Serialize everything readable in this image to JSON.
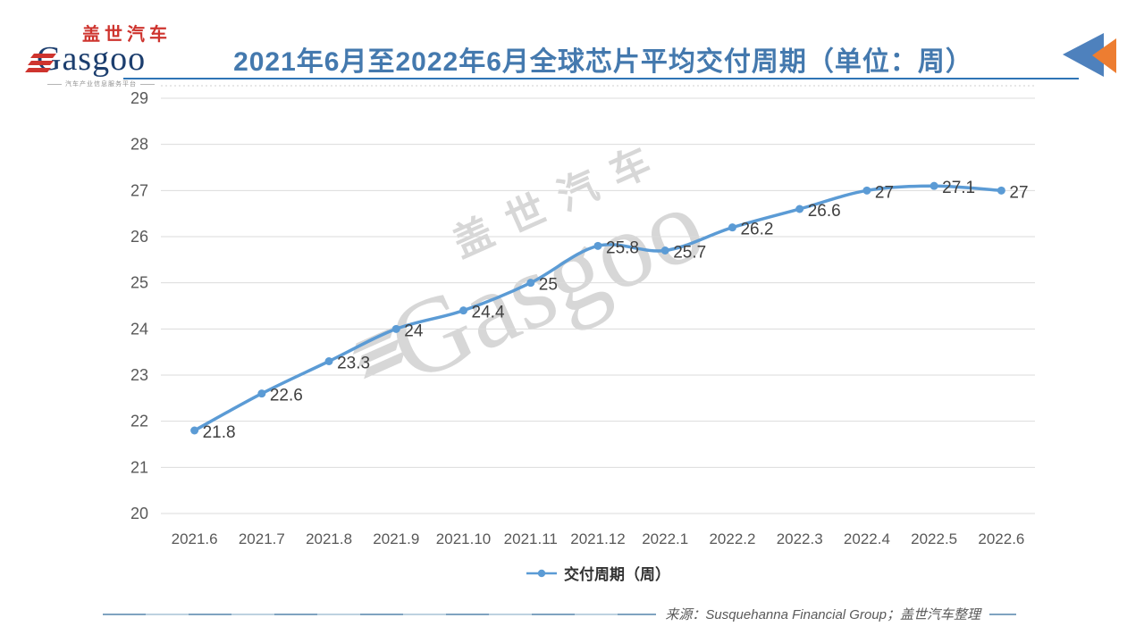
{
  "logo": {
    "cn": "盖世汽车",
    "en": "Gasgoo",
    "tagline": "汽车产业信息服务平台"
  },
  "header": {
    "title": "2021年6月至2022年6月全球芯片平均交付周期（单位：周）"
  },
  "chart_data": {
    "type": "line",
    "title": "2021年6月至2022年6月全球芯片平均交付周期（单位：周）",
    "categories": [
      "2021.6",
      "2021.7",
      "2021.8",
      "2021.9",
      "2021.10",
      "2021.11",
      "2021.12",
      "2022.1",
      "2022.2",
      "2022.3",
      "2022.4",
      "2022.5",
      "2022.6"
    ],
    "series": [
      {
        "name": "交付周期（周）",
        "values": [
          21.8,
          22.6,
          23.3,
          24,
          24.4,
          25,
          25.8,
          25.7,
          26.2,
          26.6,
          27,
          27.1,
          27
        ]
      }
    ],
    "xlabel": "",
    "ylabel": "",
    "ylim": [
      20,
      29
    ],
    "ytick_step": 1,
    "grid": "horizontal",
    "legend_position": "bottom",
    "smooth_line": true,
    "data_labels": true
  },
  "legend": {
    "label": "交付周期（周）"
  },
  "footer": {
    "source": "来源：Susquehanna Financial Group；盖世汽车整理"
  },
  "watermark": {
    "cn": "盖世汽车",
    "en": "Gasgoo"
  },
  "colors": {
    "title_blue": "#4479AE",
    "line_blue": "#5B9BD5",
    "logo_red": "#CE342E",
    "logo_navy": "#1C3E6E",
    "icon_orange": "#ED7D31",
    "icon_blue": "#4E81BD",
    "grid_gray": "#DBDBDB",
    "text_gray": "#595959",
    "label_dark": "#404040",
    "watermark_gray": "#D7D7D7",
    "rule_blue": "#7FA3C0",
    "rule_light": "#BDD2E0"
  }
}
